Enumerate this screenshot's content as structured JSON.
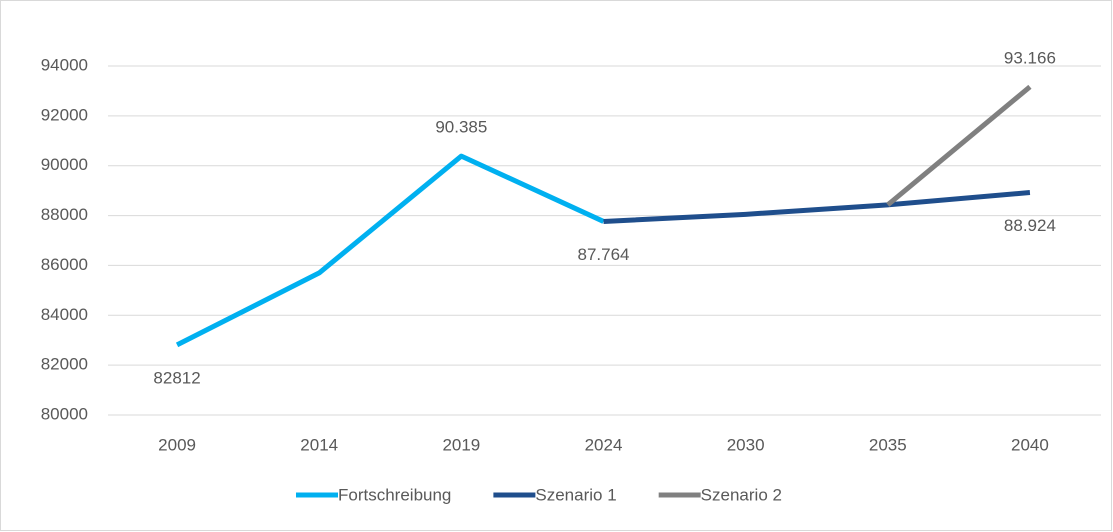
{
  "chart_data": {
    "type": "line",
    "categories": [
      "2009",
      "2014",
      "2019",
      "2024",
      "2030",
      "2035",
      "2040"
    ],
    "series": [
      {
        "name": "Fortschreibung",
        "color": "#00b0f0",
        "values": [
          82812,
          85700,
          90385,
          87764,
          null,
          null,
          null
        ],
        "value_labels": [
          "82812",
          null,
          "90.385",
          "87.764",
          null,
          null,
          null
        ]
      },
      {
        "name": "Szenario 1",
        "color": "#1f4e8c",
        "values": [
          null,
          null,
          null,
          87764,
          88050,
          88430,
          88924
        ],
        "value_labels": [
          null,
          null,
          null,
          null,
          null,
          null,
          "88.924"
        ]
      },
      {
        "name": "Szenario 2",
        "color": "#808080",
        "values": [
          null,
          null,
          null,
          null,
          null,
          88430,
          93166
        ],
        "value_labels": [
          null,
          null,
          null,
          null,
          null,
          null,
          "93.166"
        ]
      }
    ],
    "ylim": [
      80000,
      94000
    ],
    "yticks": [
      80000,
      82000,
      84000,
      86000,
      88000,
      90000,
      92000,
      94000
    ],
    "grid": true,
    "legend": "bottom"
  }
}
